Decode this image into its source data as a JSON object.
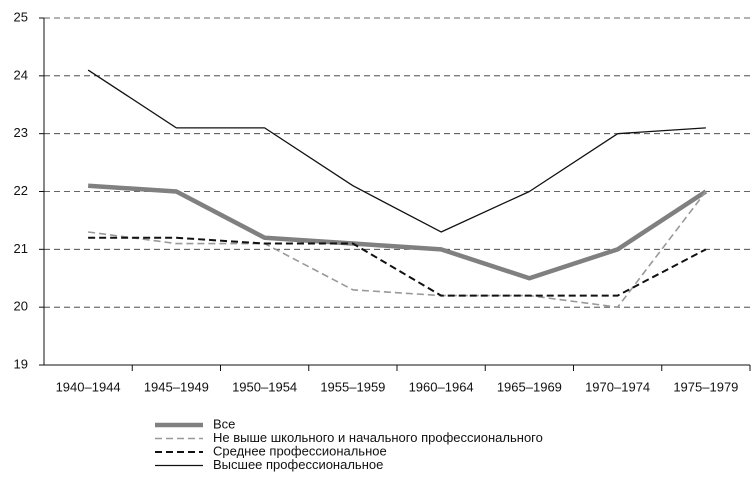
{
  "chart_data": {
    "type": "line",
    "categories": [
      "1940–1944",
      "1945–1949",
      "1950–1954",
      "1955–1959",
      "1960–1964",
      "1965–1969",
      "1970–1974",
      "1975–1979"
    ],
    "series": [
      {
        "name": "Все",
        "color": "#808080",
        "line_style": "solid",
        "linewidth": 4.5,
        "values": [
          22.1,
          22.0,
          21.2,
          21.1,
          21.0,
          20.5,
          21.0,
          22.0
        ]
      },
      {
        "name": "Не выше школьного и начального профессионального",
        "color": "#999999",
        "line_style": "dashed",
        "linewidth": 1.6,
        "values": [
          21.3,
          21.1,
          21.1,
          20.3,
          20.2,
          20.2,
          20.0,
          22.0
        ]
      },
      {
        "name": "Среднее профессиональное",
        "color": "#111111",
        "line_style": "dashed",
        "linewidth": 2,
        "values": [
          21.2,
          21.2,
          21.1,
          21.1,
          20.2,
          20.2,
          20.2,
          21.0
        ]
      },
      {
        "name": "Высшее профессиональное",
        "color": "#111111",
        "line_style": "solid",
        "linewidth": 1.3,
        "values": [
          24.1,
          23.1,
          23.1,
          22.1,
          21.3,
          22.0,
          23.0,
          23.1
        ]
      }
    ],
    "ylim": [
      19,
      25
    ],
    "yticks": [
      19,
      20,
      21,
      22,
      23,
      24,
      25
    ],
    "grid": true,
    "legend": "bottom"
  }
}
